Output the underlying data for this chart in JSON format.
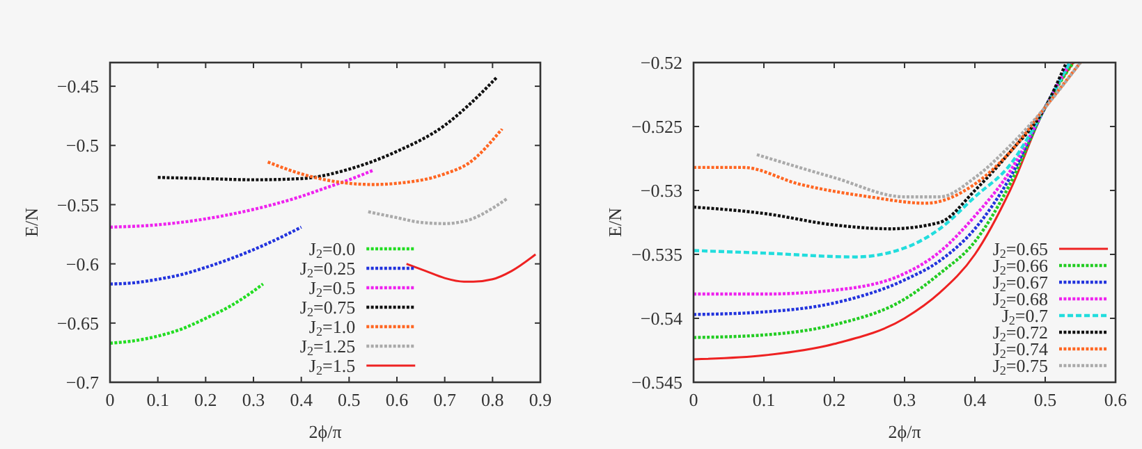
{
  "chart_data": [
    {
      "type": "line",
      "xlabel": "2ϕ/π",
      "ylabel": "E/N",
      "xlim": [
        0,
        0.9
      ],
      "ylim": [
        -0.7,
        -0.43
      ],
      "xticks": [
        0,
        0.1,
        0.2,
        0.3,
        0.4,
        0.5,
        0.6,
        0.7,
        0.8,
        0.9
      ],
      "yticks": [
        {
          "value": -0.7,
          "label": "−0.7"
        },
        {
          "value": -0.65,
          "label": "−0.65"
        },
        {
          "value": -0.6,
          "label": "−0.6"
        },
        {
          "value": -0.55,
          "label": "−0.55"
        },
        {
          "value": -0.5,
          "label": "−0.5"
        },
        {
          "value": -0.45,
          "label": "−0.45"
        }
      ],
      "grid": false,
      "legend": "bottom right",
      "series": [
        {
          "name": "J$_{2}$=0.0",
          "color": "#22dd22",
          "line_style": "dotted",
          "x": [
            0,
            0.05,
            0.1,
            0.15,
            0.2,
            0.25,
            0.3,
            0.32
          ],
          "values": [
            -0.667,
            -0.665,
            -0.661,
            -0.655,
            -0.646,
            -0.636,
            -0.623,
            -0.617
          ]
        },
        {
          "name": "J$_{2}$=0.25",
          "color": "#2233dd",
          "line_style": "dotted",
          "x": [
            0,
            0.05,
            0.1,
            0.15,
            0.2,
            0.25,
            0.3,
            0.35,
            0.4
          ],
          "values": [
            -0.617,
            -0.616,
            -0.613,
            -0.609,
            -0.603,
            -0.596,
            -0.588,
            -0.579,
            -0.569
          ]
        },
        {
          "name": "J$_{2}$=0.5",
          "color": "#ee22ee",
          "line_style": "dotted",
          "x": [
            0,
            0.1,
            0.2,
            0.3,
            0.4,
            0.45,
            0.5,
            0.55
          ],
          "values": [
            -0.569,
            -0.567,
            -0.562,
            -0.554,
            -0.543,
            -0.536,
            -0.529,
            -0.521
          ]
        },
        {
          "name": "J$_{2}$=0.75",
          "color": "#111111",
          "line_style": "dotted",
          "x": [
            0.1,
            0.2,
            0.3,
            0.4,
            0.5,
            0.6,
            0.7,
            0.75,
            0.81
          ],
          "values": [
            -0.527,
            -0.528,
            -0.529,
            -0.528,
            -0.52,
            -0.505,
            -0.483,
            -0.466,
            -0.442
          ]
        },
        {
          "name": "J$_{2}$=1.0",
          "color": "#ff6622",
          "line_style": "dotted",
          "x": [
            0.33,
            0.4,
            0.45,
            0.5,
            0.55,
            0.6,
            0.7,
            0.75,
            0.82
          ],
          "values": [
            -0.514,
            -0.524,
            -0.529,
            -0.532,
            -0.533,
            -0.532,
            -0.524,
            -0.515,
            -0.486
          ]
        },
        {
          "name": "J$_{2}$=1.25",
          "color": "#aaaaaa",
          "line_style": "dotted",
          "x": [
            0.54,
            0.6,
            0.65,
            0.7,
            0.75,
            0.8,
            0.83
          ],
          "values": [
            -0.556,
            -0.561,
            -0.565,
            -0.566,
            -0.563,
            -0.553,
            -0.545
          ]
        },
        {
          "name": "J$_{2}$=1.5",
          "color": "#ee2222",
          "line_style": "solid",
          "x": [
            0.62,
            0.66,
            0.7,
            0.74,
            0.76,
            0.8,
            0.84,
            0.89
          ],
          "values": [
            -0.6,
            -0.606,
            -0.612,
            -0.615,
            -0.615,
            -0.613,
            -0.606,
            -0.592
          ]
        }
      ]
    },
    {
      "type": "line",
      "xlabel": "2ϕ/π",
      "ylabel": "E/N",
      "xlim": [
        0,
        0.6
      ],
      "ylim": [
        -0.545,
        -0.52
      ],
      "xticks": [
        0,
        0.1,
        0.2,
        0.3,
        0.4,
        0.5,
        0.6
      ],
      "yticks": [
        {
          "value": -0.545,
          "label": "−0.545"
        },
        {
          "value": -0.54,
          "label": "−0.54"
        },
        {
          "value": -0.535,
          "label": "−0.535"
        },
        {
          "value": -0.53,
          "label": "−0.53"
        },
        {
          "value": -0.525,
          "label": "−0.525"
        },
        {
          "value": -0.52,
          "label": "−0.52"
        }
      ],
      "grid": false,
      "legend": "bottom right",
      "series": [
        {
          "name": "J$_{2}$=0.65",
          "color": "#ee2222",
          "line_style": "solid",
          "x": [
            0,
            0.1,
            0.2,
            0.3,
            0.35,
            0.4,
            0.45,
            0.5,
            0.54
          ],
          "values": [
            -0.5432,
            -0.5429,
            -0.542,
            -0.54,
            -0.538,
            -0.535,
            -0.53,
            -0.5235,
            -0.52
          ]
        },
        {
          "name": "J$_{2}$=0.66",
          "color": "#22cc22",
          "line_style": "dotted",
          "x": [
            0,
            0.1,
            0.2,
            0.3,
            0.35,
            0.4,
            0.45,
            0.5,
            0.54
          ],
          "values": [
            -0.5415,
            -0.5413,
            -0.5405,
            -0.5385,
            -0.5365,
            -0.534,
            -0.5295,
            -0.5235,
            -0.52
          ]
        },
        {
          "name": "J$_{2}$=0.67",
          "color": "#2233dd",
          "line_style": "dotted",
          "x": [
            0,
            0.1,
            0.2,
            0.3,
            0.35,
            0.4,
            0.45,
            0.5,
            0.535
          ],
          "values": [
            -0.5397,
            -0.5395,
            -0.5388,
            -0.537,
            -0.5355,
            -0.533,
            -0.529,
            -0.5235,
            -0.52
          ]
        },
        {
          "name": "J$_{2}$=0.68",
          "color": "#ee22ee",
          "line_style": "dotted",
          "x": [
            0,
            0.1,
            0.2,
            0.3,
            0.35,
            0.4,
            0.45,
            0.5,
            0.535
          ],
          "values": [
            -0.5381,
            -0.5381,
            -0.5378,
            -0.5365,
            -0.5348,
            -0.532,
            -0.5285,
            -0.5235,
            -0.52
          ]
        },
        {
          "name": "J$_{2}$=0.7",
          "color": "#22dddd",
          "line_style": "dashed",
          "x": [
            0,
            0.1,
            0.23,
            0.3,
            0.35,
            0.4,
            0.45,
            0.5,
            0.535
          ],
          "values": [
            -0.5347,
            -0.5349,
            -0.5352,
            -0.5345,
            -0.533,
            -0.5305,
            -0.528,
            -0.5235,
            -0.52
          ]
        },
        {
          "name": "J$_{2}$=0.72",
          "color": "#111111",
          "line_style": "dotted",
          "x": [
            0,
            0.1,
            0.2,
            0.28,
            0.35,
            0.4,
            0.45,
            0.5,
            0.53
          ],
          "values": [
            -0.5313,
            -0.5318,
            -0.5327,
            -0.533,
            -0.5325,
            -0.53,
            -0.527,
            -0.5235,
            -0.52
          ]
        },
        {
          "name": "J$_{2}$=0.74",
          "color": "#ff6622",
          "line_style": "dotted",
          "x": [
            0,
            0.07,
            0.15,
            0.25,
            0.33,
            0.4,
            0.45,
            0.5,
            0.55
          ],
          "values": [
            -0.5282,
            -0.5282,
            -0.5295,
            -0.5305,
            -0.531,
            -0.5295,
            -0.527,
            -0.5235,
            -0.52
          ]
        },
        {
          "name": "J$_{2}$=0.75",
          "color": "#aaaaaa",
          "line_style": "dotted",
          "x": [
            0.09,
            0.2,
            0.3,
            0.35,
            0.4,
            0.45,
            0.5,
            0.55
          ],
          "values": [
            -0.5272,
            -0.529,
            -0.5305,
            -0.5305,
            -0.529,
            -0.5265,
            -0.5235,
            -0.52
          ]
        }
      ]
    }
  ]
}
